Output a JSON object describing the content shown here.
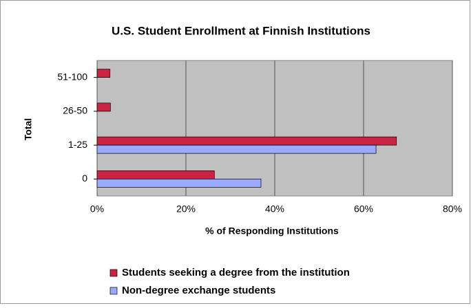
{
  "chart_data": {
    "type": "bar",
    "orientation": "horizontal",
    "title": "U.S. Student Enrollment at Finnish Institutions",
    "x_label": "% of Responding Institutions",
    "y_label": "Total",
    "categories": [
      "0",
      "1-25",
      "26-50",
      "51-100"
    ],
    "series": [
      {
        "name": "Students seeking a degree from the institution",
        "color": "#cc2244",
        "values": [
          26.4,
          67.4,
          3,
          2.9
        ]
      },
      {
        "name": "Non-degree exchange students",
        "color": "#99aaff",
        "values": [
          36.9,
          62.8,
          0,
          0
        ]
      }
    ],
    "xlim": [
      0,
      80
    ],
    "xticks": [
      {
        "value": 0,
        "label": "0%"
      },
      {
        "value": 20,
        "label": "20%"
      },
      {
        "value": 40,
        "label": "40%"
      },
      {
        "value": 60,
        "label": "60%"
      },
      {
        "value": 80,
        "label": "80%"
      }
    ],
    "grid": true,
    "legend": "bottom"
  }
}
